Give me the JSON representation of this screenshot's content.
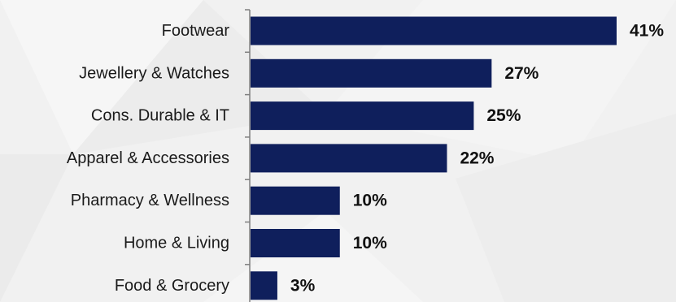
{
  "chart_data": {
    "type": "bar",
    "orientation": "horizontal",
    "categories": [
      "Footwear",
      "Jewellery & Watches",
      "Cons. Durable & IT",
      "Apparel & Accessories",
      "Pharmacy & Wellness",
      "Home & Living",
      "Food & Grocery"
    ],
    "values": [
      41,
      27,
      25,
      22,
      10,
      10,
      3
    ],
    "data_labels": [
      "41%",
      "27%",
      "25%",
      "22%",
      "10%",
      "10%",
      "3%"
    ],
    "value_unit": "%",
    "xlim": [
      0,
      41
    ],
    "title": "",
    "xlabel": "",
    "ylabel": "",
    "grid": false,
    "legend": "none",
    "colors": {
      "bar": "#0f1f5c",
      "axis": "#7f7f7f",
      "category_text": "#1a1a1a",
      "value_text": "#111111",
      "background": "#f1f1f1"
    }
  }
}
